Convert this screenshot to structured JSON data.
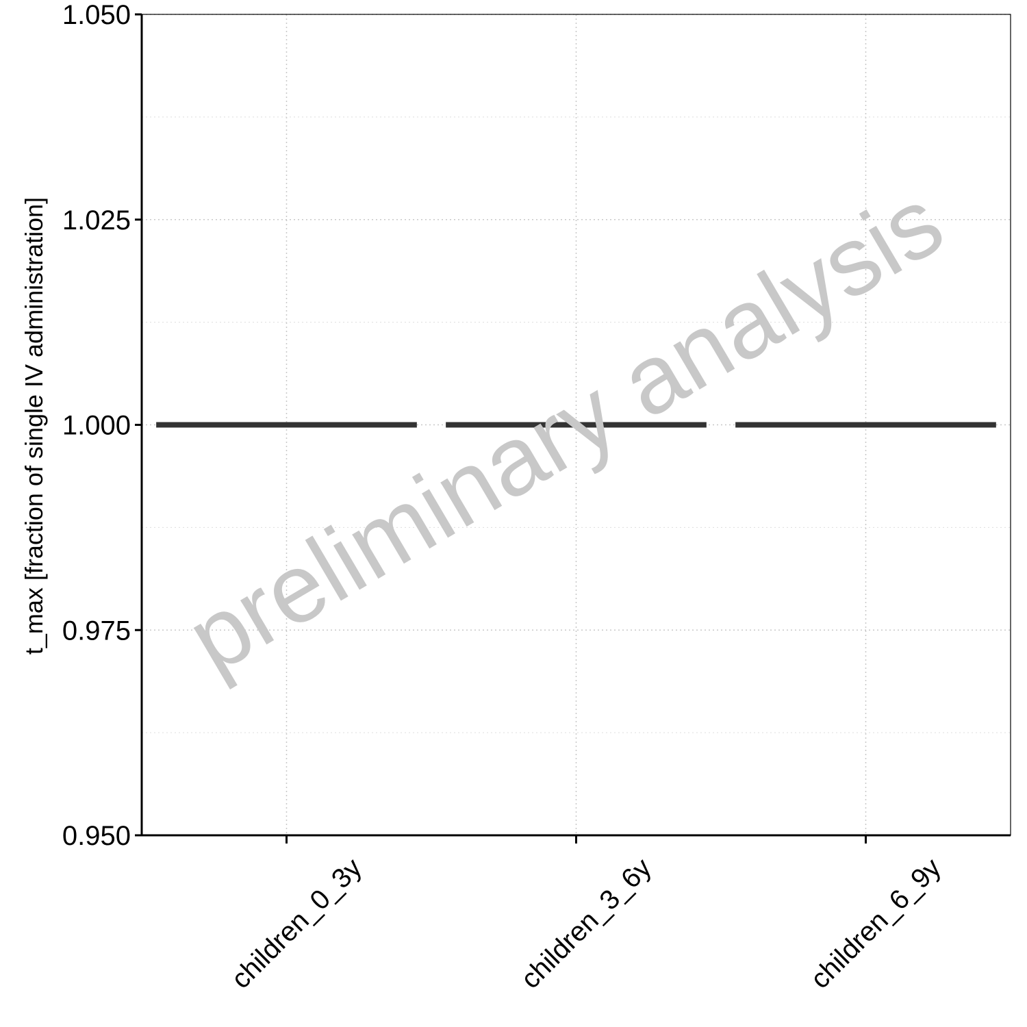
{
  "chart_data": {
    "type": "box",
    "categories": [
      "children_0_3y",
      "children_3_6y",
      "children_6_9y"
    ],
    "values": [
      1.0,
      1.0,
      1.0
    ],
    "title": "",
    "xlabel": "",
    "ylabel": "t_max [fraction of single IV administration]",
    "ylim": [
      0.95,
      1.05
    ],
    "yticks": [
      0.95,
      0.975,
      1.0,
      1.025,
      1.05
    ],
    "ytick_labels": [
      "0.950",
      "0.975",
      "1.000",
      "1.025",
      "1.050"
    ],
    "grid": true,
    "legend": "none",
    "colors": {
      "median_line": "#333333",
      "grid": "#c8c8c8",
      "axis": "#000000",
      "watermark": "#c8c8c8"
    }
  },
  "watermark": {
    "text": "preliminary analysis"
  }
}
